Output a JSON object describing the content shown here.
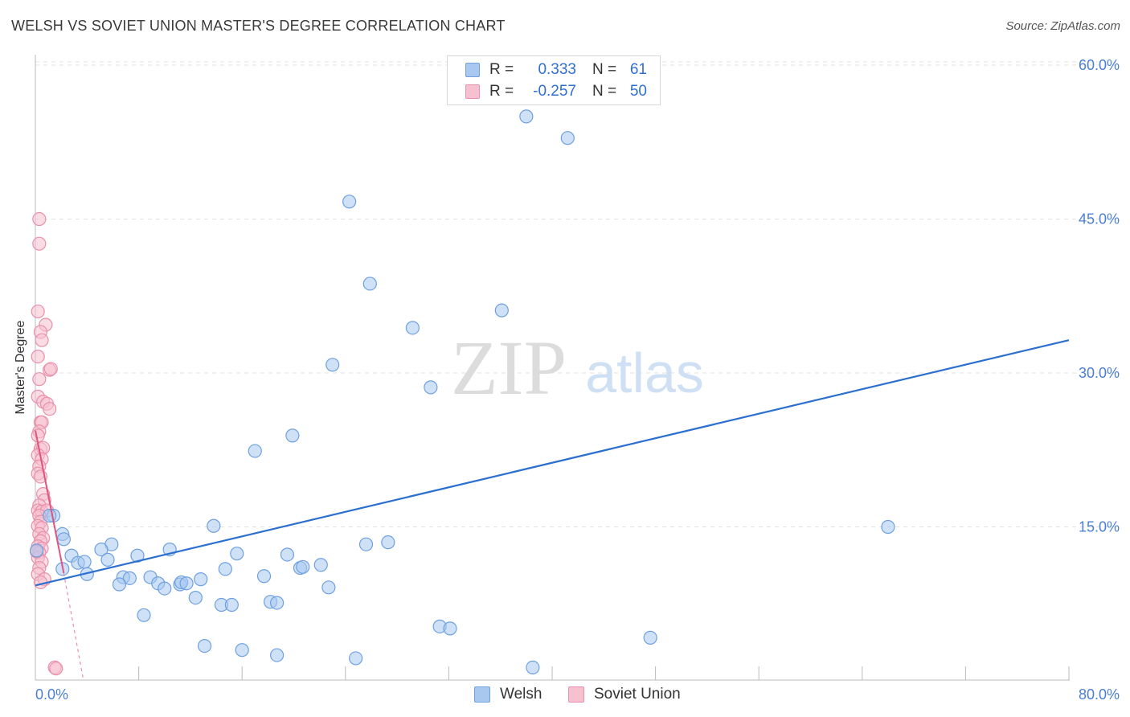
{
  "header": {
    "title": "WELSH VS SOVIET UNION MASTER'S DEGREE CORRELATION CHART",
    "source": "Source: ZipAtlas.com"
  },
  "watermark": {
    "zip": "ZIP",
    "atlas": "atlas"
  },
  "legend": {
    "rows": [
      {
        "r_label": "R =",
        "r_value": "0.333",
        "n_label": "N =",
        "n_value": "61",
        "color": "#a8c8f0",
        "border": "#6fa0e0"
      },
      {
        "r_label": "R =",
        "r_value": "-0.257",
        "n_label": "N =",
        "n_value": "50",
        "color": "#f6c0d0",
        "border": "#e890aa"
      }
    ]
  },
  "bottom_legend": [
    {
      "label": "Welsh",
      "color": "#a8c8f0",
      "border": "#6fa0e0"
    },
    {
      "label": "Soviet Union",
      "color": "#f6c0d0",
      "border": "#e890aa"
    }
  ],
  "chart_data": {
    "type": "scatter",
    "title": "WELSH VS SOVIET UNION MASTER'S DEGREE CORRELATION CHART",
    "xlabel": "",
    "ylabel": "Master's Degree",
    "xlim": [
      0,
      80
    ],
    "ylim": [
      0,
      62
    ],
    "x_tick_labels": [
      "0.0%",
      "80.0%"
    ],
    "y_ticks": [
      15,
      30,
      45,
      60
    ],
    "y_tick_labels": [
      "15.0%",
      "30.0%",
      "45.0%",
      "60.0%"
    ],
    "grid": true,
    "legend_position": "top-center",
    "series": [
      {
        "name": "Welsh",
        "color": "#6fa0e0",
        "fill": "#a8c8f0",
        "trend": {
          "x": [
            0,
            80
          ],
          "y": [
            9.3,
            33.2
          ]
        },
        "points": [
          [
            38.0,
            55.0
          ],
          [
            41.2,
            52.9
          ],
          [
            24.3,
            46.7
          ],
          [
            25.9,
            38.7
          ],
          [
            36.1,
            36.1
          ],
          [
            29.2,
            34.4
          ],
          [
            23.0,
            30.8
          ],
          [
            30.6,
            28.6
          ],
          [
            19.9,
            23.9
          ],
          [
            17.0,
            22.4
          ],
          [
            1.4,
            16.1
          ],
          [
            1.1,
            16.1
          ],
          [
            13.8,
            15.1
          ],
          [
            66.0,
            15.0
          ],
          [
            2.1,
            14.3
          ],
          [
            2.2,
            13.8
          ],
          [
            5.9,
            13.3
          ],
          [
            25.6,
            13.3
          ],
          [
            27.3,
            13.5
          ],
          [
            5.1,
            12.8
          ],
          [
            10.4,
            12.8
          ],
          [
            2.8,
            12.2
          ],
          [
            7.9,
            12.2
          ],
          [
            15.6,
            12.4
          ],
          [
            19.5,
            12.3
          ],
          [
            3.3,
            11.5
          ],
          [
            3.8,
            11.6
          ],
          [
            5.6,
            11.8
          ],
          [
            22.1,
            11.3
          ],
          [
            2.1,
            10.9
          ],
          [
            4.0,
            10.4
          ],
          [
            14.7,
            10.9
          ],
          [
            20.5,
            11.0
          ],
          [
            20.7,
            11.1
          ],
          [
            6.8,
            10.1
          ],
          [
            8.9,
            10.1
          ],
          [
            7.3,
            10.0
          ],
          [
            17.7,
            10.2
          ],
          [
            9.5,
            9.5
          ],
          [
            11.2,
            9.4
          ],
          [
            6.5,
            9.4
          ],
          [
            11.3,
            9.6
          ],
          [
            11.7,
            9.5
          ],
          [
            12.8,
            9.9
          ],
          [
            10.0,
            9.0
          ],
          [
            22.7,
            9.1
          ],
          [
            12.4,
            8.1
          ],
          [
            14.4,
            7.4
          ],
          [
            15.2,
            7.4
          ],
          [
            18.2,
            7.7
          ],
          [
            18.7,
            7.6
          ],
          [
            8.4,
            6.4
          ],
          [
            31.3,
            5.3
          ],
          [
            32.1,
            5.1
          ],
          [
            47.6,
            4.2
          ],
          [
            13.1,
            3.4
          ],
          [
            16.0,
            3.0
          ],
          [
            18.7,
            2.5
          ],
          [
            24.8,
            2.2
          ],
          [
            38.5,
            1.3
          ],
          [
            0.1,
            12.7
          ]
        ]
      },
      {
        "name": "Soviet Union",
        "color": "#e890aa",
        "fill": "#f6c0d0",
        "trend": {
          "x": [
            0,
            2.2
          ],
          "y": [
            24.4,
            10.5
          ]
        },
        "trend_dashed": {
          "x": [
            2.2,
            3.7
          ],
          "y": [
            10.5,
            0.2
          ]
        },
        "points": [
          [
            0.3,
            45.0
          ],
          [
            0.3,
            42.6
          ],
          [
            0.2,
            36.0
          ],
          [
            0.8,
            34.7
          ],
          [
            0.4,
            34.0
          ],
          [
            0.5,
            33.2
          ],
          [
            0.2,
            31.6
          ],
          [
            1.1,
            30.3
          ],
          [
            1.2,
            30.4
          ],
          [
            0.3,
            29.4
          ],
          [
            0.2,
            27.7
          ],
          [
            0.6,
            27.2
          ],
          [
            0.9,
            27.0
          ],
          [
            1.1,
            26.5
          ],
          [
            0.4,
            25.2
          ],
          [
            0.5,
            25.2
          ],
          [
            0.3,
            24.3
          ],
          [
            0.2,
            23.9
          ],
          [
            0.4,
            22.6
          ],
          [
            0.6,
            22.7
          ],
          [
            0.2,
            22.0
          ],
          [
            0.5,
            21.6
          ],
          [
            0.3,
            20.9
          ],
          [
            0.2,
            20.2
          ],
          [
            0.4,
            19.9
          ],
          [
            0.6,
            18.2
          ],
          [
            0.7,
            17.6
          ],
          [
            0.3,
            17.1
          ],
          [
            0.2,
            16.6
          ],
          [
            0.5,
            16.5
          ],
          [
            0.9,
            16.6
          ],
          [
            0.3,
            16.1
          ],
          [
            0.4,
            15.5
          ],
          [
            0.2,
            15.1
          ],
          [
            0.5,
            14.9
          ],
          [
            0.3,
            14.3
          ],
          [
            0.6,
            13.9
          ],
          [
            0.4,
            13.6
          ],
          [
            0.2,
            13.1
          ],
          [
            0.5,
            12.9
          ],
          [
            0.3,
            12.5
          ],
          [
            0.2,
            12.0
          ],
          [
            0.5,
            11.6
          ],
          [
            0.3,
            11.0
          ],
          [
            0.2,
            10.4
          ],
          [
            0.7,
            9.9
          ],
          [
            0.4,
            9.6
          ],
          [
            1.5,
            1.3
          ],
          [
            1.6,
            1.2
          ],
          [
            0.1,
            12.6
          ]
        ]
      }
    ]
  }
}
